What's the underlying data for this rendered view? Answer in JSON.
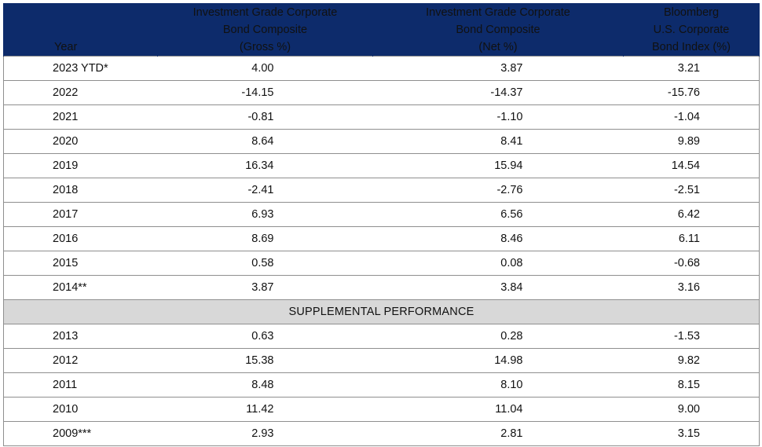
{
  "header": {
    "year": "Year",
    "gross": [
      "Investment Grade Corporate",
      "Bond Composite",
      "(Gross %)"
    ],
    "net": [
      "Investment Grade Corporate",
      "Bond Composite",
      "(Net %)"
    ],
    "index": [
      "Bloomberg",
      "U.S. Corporate",
      "Bond Index (%)"
    ]
  },
  "rows_top": [
    {
      "year": "2023 YTD*",
      "gross": "4.00",
      "net": "3.87",
      "index": "3.21"
    },
    {
      "year": "2022",
      "gross": "-14.15",
      "net": "-14.37",
      "index": "-15.76"
    },
    {
      "year": "2021",
      "gross": "-0.81",
      "net": "-1.10",
      "index": "-1.04"
    },
    {
      "year": "2020",
      "gross": "8.64",
      "net": "8.41",
      "index": "9.89"
    },
    {
      "year": "2019",
      "gross": "16.34",
      "net": "15.94",
      "index": "14.54"
    },
    {
      "year": "2018",
      "gross": "-2.41",
      "net": "-2.76",
      "index": "-2.51"
    },
    {
      "year": "2017",
      "gross": "6.93",
      "net": "6.56",
      "index": "6.42"
    },
    {
      "year": "2016",
      "gross": "8.69",
      "net": "8.46",
      "index": "6.11"
    },
    {
      "year": "2015",
      "gross": "0.58",
      "net": "0.08",
      "index": "-0.68"
    },
    {
      "year": "2014**",
      "gross": "3.87",
      "net": "3.84",
      "index": "3.16"
    }
  ],
  "supplemental_label": "SUPPLEMENTAL PERFORMANCE",
  "rows_bottom": [
    {
      "year": "2013",
      "gross": "0.63",
      "net": "0.28",
      "index": "-1.53"
    },
    {
      "year": "2012",
      "gross": "15.38",
      "net": "14.98",
      "index": "9.82"
    },
    {
      "year": "2011",
      "gross": "8.48",
      "net": "8.10",
      "index": "8.15"
    },
    {
      "year": "2010",
      "gross": "11.42",
      "net": "11.04",
      "index": "9.00"
    },
    {
      "year": "2009***",
      "gross": "2.93",
      "net": "2.81",
      "index": "3.15"
    }
  ],
  "colors": {
    "header_bg": "#0d2b6b",
    "header_text": "#ffffff",
    "supplemental_bg": "#d8d8d8",
    "border": "#8f8f8f"
  }
}
